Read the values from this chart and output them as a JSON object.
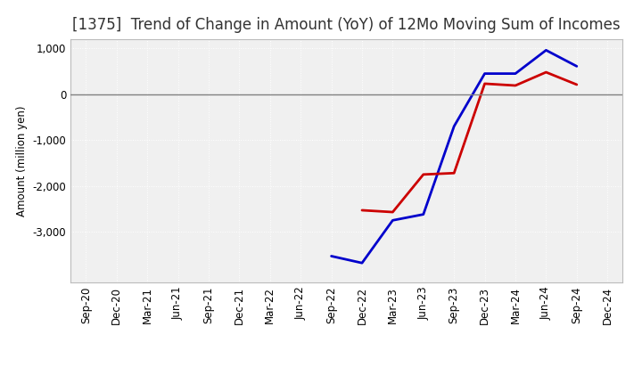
{
  "title": "[1375]  Trend of Change in Amount (YoY) of 12Mo Moving Sum of Incomes",
  "ylabel": "Amount (million yen)",
  "x_labels": [
    "Sep-20",
    "Dec-20",
    "Mar-21",
    "Jun-21",
    "Sep-21",
    "Dec-21",
    "Mar-22",
    "Jun-22",
    "Sep-22",
    "Dec-22",
    "Mar-23",
    "Jun-23",
    "Sep-23",
    "Dec-23",
    "Mar-24",
    "Jun-24",
    "Sep-24",
    "Dec-24"
  ],
  "ordinary_income": [
    null,
    null,
    null,
    null,
    null,
    null,
    null,
    null,
    -3530,
    -3680,
    -2750,
    -2620,
    -700,
    450,
    450,
    960,
    610,
    null
  ],
  "net_income": [
    null,
    null,
    null,
    null,
    null,
    null,
    null,
    null,
    null,
    -2530,
    -2570,
    -1750,
    -1720,
    230,
    190,
    480,
    210,
    null
  ],
  "ordinary_color": "#0000cc",
  "net_color": "#cc0000",
  "ylim": [
    -4100,
    1200
  ],
  "yticks": [
    -3000,
    -2000,
    -1000,
    0,
    1000
  ],
  "bg_color": "#ffffff",
  "plot_bg_color": "#f0f0f0",
  "grid_color": "#ffffff",
  "zero_line_color": "#808080",
  "title_fontsize": 12,
  "axis_fontsize": 8.5,
  "legend_fontsize": 10
}
